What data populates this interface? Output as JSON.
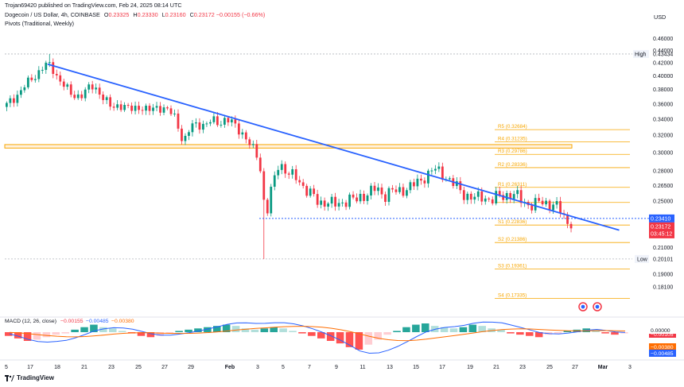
{
  "header": {
    "published": "Trojan69420 published on TradingView.com, Feb 24, 2025 08:14 UTC",
    "symbol": "Dogecoin / US Dollar, 4h, COINBASE",
    "ohlc": [
      {
        "label": "O",
        "value": "0.23325"
      },
      {
        "label": "H",
        "value": "0.23330"
      },
      {
        "label": "L",
        "value": "0.23160"
      },
      {
        "label": "C",
        "value": "0.23172"
      },
      {
        "label": "",
        "value": "−0.00155 (−0.66%)"
      }
    ],
    "pivots_label": "Pivots (Traditional, Weekly)",
    "currency": "USD"
  },
  "footer": {
    "brand": "TradingView"
  },
  "colors": {
    "up": "#089981",
    "down": "#f23645",
    "trend": "#2962ff",
    "pivot": "#f7a600",
    "axis_text": "#131722",
    "macd": "#2962ff",
    "signal": "#ff6d00"
  },
  "chart_data": [
    {
      "type": "candlestick",
      "title": "",
      "ylim": [
        0.165,
        0.475
      ],
      "y_scale": "log",
      "price_ticks": [
        "0.46000",
        "0.44000",
        "0.42000",
        "0.40000",
        "0.38000",
        "0.36000",
        "0.34000",
        "0.32000",
        "0.30000",
        "0.28000",
        "0.26500",
        "0.25000",
        "0.22000",
        "0.21000",
        "0.19000",
        "0.18100"
      ],
      "x_ticks": [
        "5",
        "17",
        "18",
        "21",
        "23",
        "25",
        "27",
        "29",
        "Feb",
        "3",
        "5",
        "7",
        "9",
        "11",
        "13",
        "15",
        "17",
        "19",
        "21",
        "23",
        "25",
        "27",
        "Mar",
        "3"
      ],
      "high": {
        "label": "High",
        "value": "0.43434"
      },
      "low": {
        "label": "Low",
        "value": "0.20101"
      },
      "last_price_tags": [
        "0.23410",
        "0.23172",
        "03:45:12"
      ],
      "pivot_levels": [
        {
          "name": "R5",
          "text": "R5 (0.32684)",
          "value": 0.32684
        },
        {
          "name": "R4",
          "text": "R4 (0.31235)",
          "value": 0.31235
        },
        {
          "name": "R3",
          "text": "R3 (0.29786)",
          "value": 0.29786
        },
        {
          "name": "R2",
          "text": "R2 (0.28336)",
          "value": 0.28336
        },
        {
          "name": "R1",
          "text": "R1 (0.26311)",
          "value": 0.26311
        },
        {
          "name": "P",
          "text": "",
          "value": 0.24862
        },
        {
          "name": "S1",
          "text": "S1 (0.22836)",
          "value": 0.22836
        },
        {
          "name": "S2",
          "text": "S2 (0.21386)",
          "value": 0.21386
        },
        {
          "name": "S3",
          "text": "S3 (0.19361)",
          "value": 0.19361
        },
        {
          "name": "S4",
          "text": "S4 (0.17335)",
          "value": 0.17335
        }
      ],
      "support_zone": [
        0.305,
        0.309
      ],
      "dotted_line": 0.2341,
      "price_path": [
        [
          0,
          0.356
        ],
        [
          3,
          0.37
        ],
        [
          6,
          0.388
        ],
        [
          9,
          0.402
        ],
        [
          10,
          0.412
        ],
        [
          11,
          0.414
        ],
        [
          12,
          0.42
        ],
        [
          14,
          0.404
        ],
        [
          16,
          0.39
        ],
        [
          19,
          0.37
        ],
        [
          22,
          0.374
        ],
        [
          24,
          0.385
        ],
        [
          26,
          0.38
        ],
        [
          28,
          0.365
        ],
        [
          30,
          0.354
        ],
        [
          32,
          0.36
        ],
        [
          35,
          0.352
        ],
        [
          38,
          0.357
        ],
        [
          40,
          0.35
        ],
        [
          43,
          0.357
        ],
        [
          46,
          0.35
        ],
        [
          48,
          0.34
        ],
        [
          50,
          0.31
        ],
        [
          52,
          0.33
        ],
        [
          54,
          0.335
        ],
        [
          56,
          0.332
        ],
        [
          58,
          0.338
        ],
        [
          60,
          0.336
        ],
        [
          62,
          0.34
        ],
        [
          65,
          0.33
        ],
        [
          67,
          0.32
        ],
        [
          69,
          0.305
        ],
        [
          71,
          0.295
        ],
        [
          72,
          0.27
        ],
        [
          73,
          0.23
        ],
        [
          74,
          0.255
        ],
        [
          75,
          0.262
        ],
        [
          76,
          0.282
        ],
        [
          77,
          0.29
        ],
        [
          78,
          0.282
        ],
        [
          80,
          0.275
        ],
        [
          82,
          0.272
        ],
        [
          84,
          0.262
        ],
        [
          86,
          0.255
        ],
        [
          88,
          0.248
        ],
        [
          90,
          0.25
        ],
        [
          92,
          0.246
        ],
        [
          94,
          0.248
        ],
        [
          96,
          0.252
        ],
        [
          98,
          0.25
        ],
        [
          100,
          0.255
        ],
        [
          102,
          0.258
        ],
        [
          104,
          0.262
        ],
        [
          106,
          0.255
        ],
        [
          108,
          0.26
        ],
        [
          110,
          0.258
        ],
        [
          112,
          0.262
        ],
        [
          114,
          0.265
        ],
        [
          116,
          0.268
        ],
        [
          118,
          0.276
        ],
        [
          120,
          0.282
        ],
        [
          122,
          0.278
        ],
        [
          124,
          0.272
        ],
        [
          126,
          0.265
        ],
        [
          128,
          0.258
        ],
        [
          130,
          0.254
        ],
        [
          132,
          0.252
        ],
        [
          134,
          0.255
        ],
        [
          136,
          0.25
        ],
        [
          138,
          0.254
        ],
        [
          140,
          0.256
        ],
        [
          142,
          0.256
        ],
        [
          144,
          0.253
        ],
        [
          146,
          0.248
        ],
        [
          148,
          0.245
        ],
        [
          150,
          0.25
        ],
        [
          152,
          0.248
        ],
        [
          154,
          0.245
        ],
        [
          156,
          0.24
        ],
        [
          157,
          0.232
        ],
        [
          158,
          0.231
        ]
      ],
      "trendline": [
        [
          12,
          0.418
        ],
        [
          172,
          0.224
        ]
      ]
    },
    {
      "type": "line",
      "title": "MACD (12, 26, close)",
      "values_text": [
        "−0.00155",
        "−0.00485",
        "−0.00380"
      ],
      "value_tags": [
        "−0.00105",
        "0.00000",
        "−0.00380",
        "−0.00485"
      ],
      "histogram": [
        -0.003,
        -0.005,
        -0.007,
        -0.006,
        -0.004,
        -0.002,
        -0.001,
        0.002,
        0.004,
        0.006,
        0.004,
        0.003,
        0.001,
        -0.001,
        -0.003,
        -0.004,
        -0.003,
        -0.001,
        0.001,
        0.002,
        0.003,
        0.004,
        0.005,
        0.006,
        0.005,
        0.003,
        0.002,
        0.003,
        0.004,
        0.003,
        0.001,
        -0.001,
        -0.003,
        -0.005,
        -0.007,
        -0.009,
        -0.012,
        -0.014,
        -0.01,
        -0.006,
        -0.002,
        0.001,
        0.004,
        0.006,
        0.007,
        0.005,
        0.004,
        0.003,
        0.004,
        0.006,
        0.005,
        0.003,
        0.002,
        -0.001,
        -0.002,
        -0.003,
        -0.004,
        -0.002,
        -0.001,
        0.001,
        0.002,
        0.003,
        0.002,
        -0.001,
        -0.002,
        -0.001
      ]
    }
  ]
}
